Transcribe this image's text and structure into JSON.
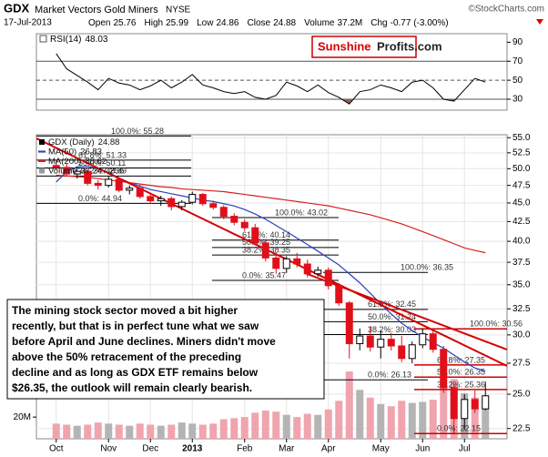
{
  "header": {
    "symbol": "GDX",
    "name": "Market Vectors Gold Miners",
    "exchange": "NYSE",
    "source": "©StockCharts.com",
    "date": "17-Jul-2013",
    "quote": [
      {
        "label": "Open",
        "value": 25.76
      },
      {
        "label": "High",
        "value": 25.99
      },
      {
        "label": "Low",
        "value": 24.86
      },
      {
        "label": "Close",
        "value": 24.88
      },
      {
        "label": "Volume",
        "value": "37.2M"
      },
      {
        "label": "Chg",
        "value": "-0.77 (-3.00%)"
      }
    ],
    "logo": {
      "part1": "Sunshine",
      "part2": "Profits.com"
    }
  },
  "annotation": [
    "The mining stock sector moved a bit higher",
    "recently, but that is in perfect tune what we saw",
    "before April and June declines. Miners didn't move",
    "above the 50% retracement of the preceding",
    "decline and as long as GDX ETF remains below",
    "$26.35, the outlook will remain clearly bearish."
  ],
  "chart_data": [
    {
      "type": "line",
      "name": "RSI(14)",
      "legend_value": 48.03,
      "color": "#000000",
      "fill_color": "#8b6455",
      "values": [
        78,
        62,
        55,
        48,
        40,
        52,
        47,
        45,
        40,
        44,
        50,
        42,
        48,
        56,
        45,
        42,
        38,
        36,
        38,
        32,
        30,
        34,
        48,
        44,
        38,
        45,
        37,
        32,
        25,
        38,
        40,
        45,
        42,
        38,
        48,
        50,
        42,
        30,
        28,
        40,
        52,
        48.03
      ],
      "ylim": [
        18.5,
        99
      ],
      "yticks": [
        30,
        50,
        70,
        90
      ],
      "overbought": 70,
      "centerline": 50,
      "oversold": 30
    },
    {
      "type": "candlestick",
      "name": "GDX (Daily)",
      "legend_value": 24.88,
      "up_color": "#000000",
      "down_color": "#e0101a",
      "log_scale": true,
      "grid": true,
      "categories": [
        "Oct",
        null,
        null,
        null,
        null,
        "Nov",
        null,
        null,
        null,
        "Dec",
        null,
        null,
        null,
        "2013",
        null,
        null,
        null,
        null,
        "Feb",
        null,
        null,
        null,
        "Mar",
        null,
        null,
        null,
        "Apr",
        null,
        null,
        null,
        null,
        "May",
        null,
        null,
        null,
        "Jun",
        null,
        null,
        null,
        "Jul",
        null,
        null
      ],
      "open": [
        50.5,
        50.2,
        49.2,
        49.6,
        47.8,
        47.5,
        48.4,
        46.8,
        47.1,
        45.9,
        45.3,
        45.6,
        44.5,
        45.1,
        46.2,
        44.9,
        44.4,
        43.2,
        42.4,
        41.7,
        39.8,
        38.0,
        36.8,
        37.9,
        37.3,
        36.2,
        36.6,
        34.9,
        33.1,
        29.2,
        29.9,
        28.9,
        29.6,
        29.0,
        27.9,
        29.1,
        30.1,
        28.7,
        25.5,
        23.2,
        24.6,
        23.9
      ],
      "high": [
        51.3,
        50.8,
        50.0,
        49.9,
        48.3,
        48.8,
        48.6,
        47.5,
        47.6,
        46.4,
        46.0,
        45.9,
        45.4,
        46.6,
        46.4,
        45.3,
        44.7,
        43.6,
        42.8,
        42.2,
        40.3,
        38.6,
        38.2,
        38.6,
        37.8,
        37.0,
        36.9,
        35.2,
        33.3,
        30.6,
        30.8,
        30.4,
        30.2,
        29.9,
        29.4,
        30.6,
        30.4,
        29.0,
        25.8,
        25.0,
        25.3,
        25.99
      ],
      "low": [
        49.8,
        48.9,
        48.5,
        47.5,
        46.9,
        47.2,
        46.5,
        46.2,
        45.6,
        44.9,
        44.6,
        44.0,
        44.0,
        44.8,
        44.6,
        44.1,
        42.8,
        42.0,
        41.3,
        39.5,
        37.6,
        36.2,
        36.3,
        36.9,
        35.8,
        35.9,
        34.5,
        32.8,
        27.9,
        28.6,
        28.5,
        27.9,
        28.6,
        27.6,
        27.5,
        28.8,
        28.4,
        25.1,
        22.2,
        22.4,
        23.6,
        23.8
      ],
      "close": [
        50.2,
        49.2,
        49.6,
        47.8,
        47.5,
        48.4,
        46.8,
        47.1,
        45.9,
        45.3,
        45.6,
        44.5,
        45.1,
        46.2,
        44.9,
        44.4,
        43.2,
        42.4,
        41.7,
        39.8,
        38.0,
        36.8,
        37.9,
        37.3,
        36.2,
        36.6,
        34.9,
        33.1,
        29.2,
        29.9,
        28.9,
        29.6,
        29.0,
        27.9,
        29.1,
        30.1,
        28.7,
        25.5,
        23.2,
        24.6,
        23.9,
        24.88
      ],
      "overlays": [
        {
          "name": "MA(50)",
          "legend_value": 26.83,
          "color": "#2a3fbf",
          "values": [
            48.0,
            49.5,
            50.3,
            50.4,
            50.0,
            49.4,
            48.6,
            47.9,
            47.4,
            46.9,
            46.6,
            46.3,
            46.0,
            45.7,
            45.4,
            45.2,
            44.9,
            44.6,
            44.1,
            43.5,
            42.8,
            42.0,
            41.2,
            40.4,
            39.6,
            38.8,
            38.0,
            37.2,
            36.2,
            35.2,
            34.1,
            33.0,
            32.0,
            31.1,
            30.4,
            29.8,
            29.3,
            28.8,
            28.2,
            27.6,
            27.1,
            26.83
          ]
        },
        {
          "name": "MA(200)",
          "legend_value": 38.62,
          "color": "#d42020",
          "values": [
            49.0,
            48.9,
            48.8,
            48.7,
            48.5,
            48.3,
            48.1,
            47.9,
            47.7,
            47.5,
            47.3,
            47.2,
            47.0,
            46.9,
            46.8,
            46.7,
            46.6,
            46.4,
            46.2,
            46.0,
            45.8,
            45.6,
            45.4,
            45.2,
            45.0,
            44.8,
            44.6,
            44.3,
            44.0,
            43.7,
            43.4,
            43.0,
            42.6,
            42.2,
            41.7,
            41.2,
            40.7,
            40.2,
            39.7,
            39.2,
            38.9,
            38.62
          ]
        }
      ],
      "volume": {
        "name": "Volume",
        "legend_value": "37,247,256",
        "up_color": "#b4b4b4",
        "down_color": "#f0a4ae",
        "values": [
          14000000,
          13000000,
          12000000,
          13000000,
          15000000,
          14000000,
          13000000,
          12000000,
          14000000,
          13000000,
          12000000,
          13000000,
          15000000,
          14000000,
          13000000,
          14000000,
          18000000,
          19000000,
          20000000,
          24000000,
          26000000,
          25000000,
          22000000,
          20000000,
          23000000,
          22000000,
          27000000,
          35000000,
          62000000,
          45000000,
          38000000,
          32000000,
          30000000,
          35000000,
          33000000,
          34000000,
          36000000,
          48000000,
          55000000,
          42000000,
          38000000,
          37247256
        ],
        "ylim": [
          0,
          280000000
        ],
        "yticks": [
          {
            "value": 20000000,
            "label": "20M"
          }
        ]
      },
      "ylim": [
        21.8,
        55.5
      ],
      "yticks": [
        22.5,
        {
          "value": 25,
          "label": "25.0"
        },
        27.5,
        {
          "value": 30,
          "label": "30.0"
        },
        32.5,
        {
          "value": 35,
          "label": "35.0"
        },
        37.5,
        {
          "value": 40,
          "label": "40.0"
        },
        42.5,
        {
          "value": 45,
          "label": "45.0"
        },
        47.5,
        {
          "value": 50,
          "label": "50.0"
        },
        52.5,
        {
          "value": 55,
          "label": "55.0"
        }
      ],
      "fib_sets": [
        {
          "color": "#000000",
          "levels": [
            {
              "label": "100.0%: 55.28",
              "level": 55.28
            },
            {
              "label": "61.8%: 51.33",
              "level": 51.33
            },
            {
              "label": "50.0%: 50.11",
              "level": 50.11
            },
            {
              "label": "38.2%: 48.89",
              "level": 48.89
            },
            {
              "label": "0.0%: 44.94",
              "level": 44.94
            }
          ]
        },
        {
          "color": "#000000",
          "levels": [
            {
              "label": "100.0%: 43.02",
              "level": 43.02
            },
            {
              "label": "61.8%: 40.14",
              "level": 40.14
            },
            {
              "label": "50.0%: 39.25",
              "level": 39.25
            },
            {
              "label": "38.2%: 38.35",
              "level": 38.35
            },
            {
              "label": "0.0%: 35.47",
              "level": 35.47
            }
          ]
        },
        {
          "color": "#000000",
          "levels": [
            {
              "label": "100.0%: 36.35",
              "level": 36.35
            },
            {
              "label": "61.8%: 32.45",
              "level": 32.45
            },
            {
              "label": "50.0%: 31.24",
              "level": 31.24
            },
            {
              "label": "38.2%: 30.03",
              "level": 30.03
            },
            {
              "label": "0.0%: 26.13",
              "level": 26.13
            }
          ]
        },
        {
          "color": "#d00000",
          "levels": [
            {
              "label": "100.0%: 30.56",
              "level": 30.56
            },
            {
              "label": "61.8%: 27.35",
              "level": 27.35
            },
            {
              "label": "50.0%: 26.35",
              "level": 26.35
            },
            {
              "label": "38.2%: 25.36",
              "level": 25.36
            },
            {
              "label": "0.0%: 22.15",
              "level": 22.15
            }
          ]
        }
      ]
    }
  ]
}
